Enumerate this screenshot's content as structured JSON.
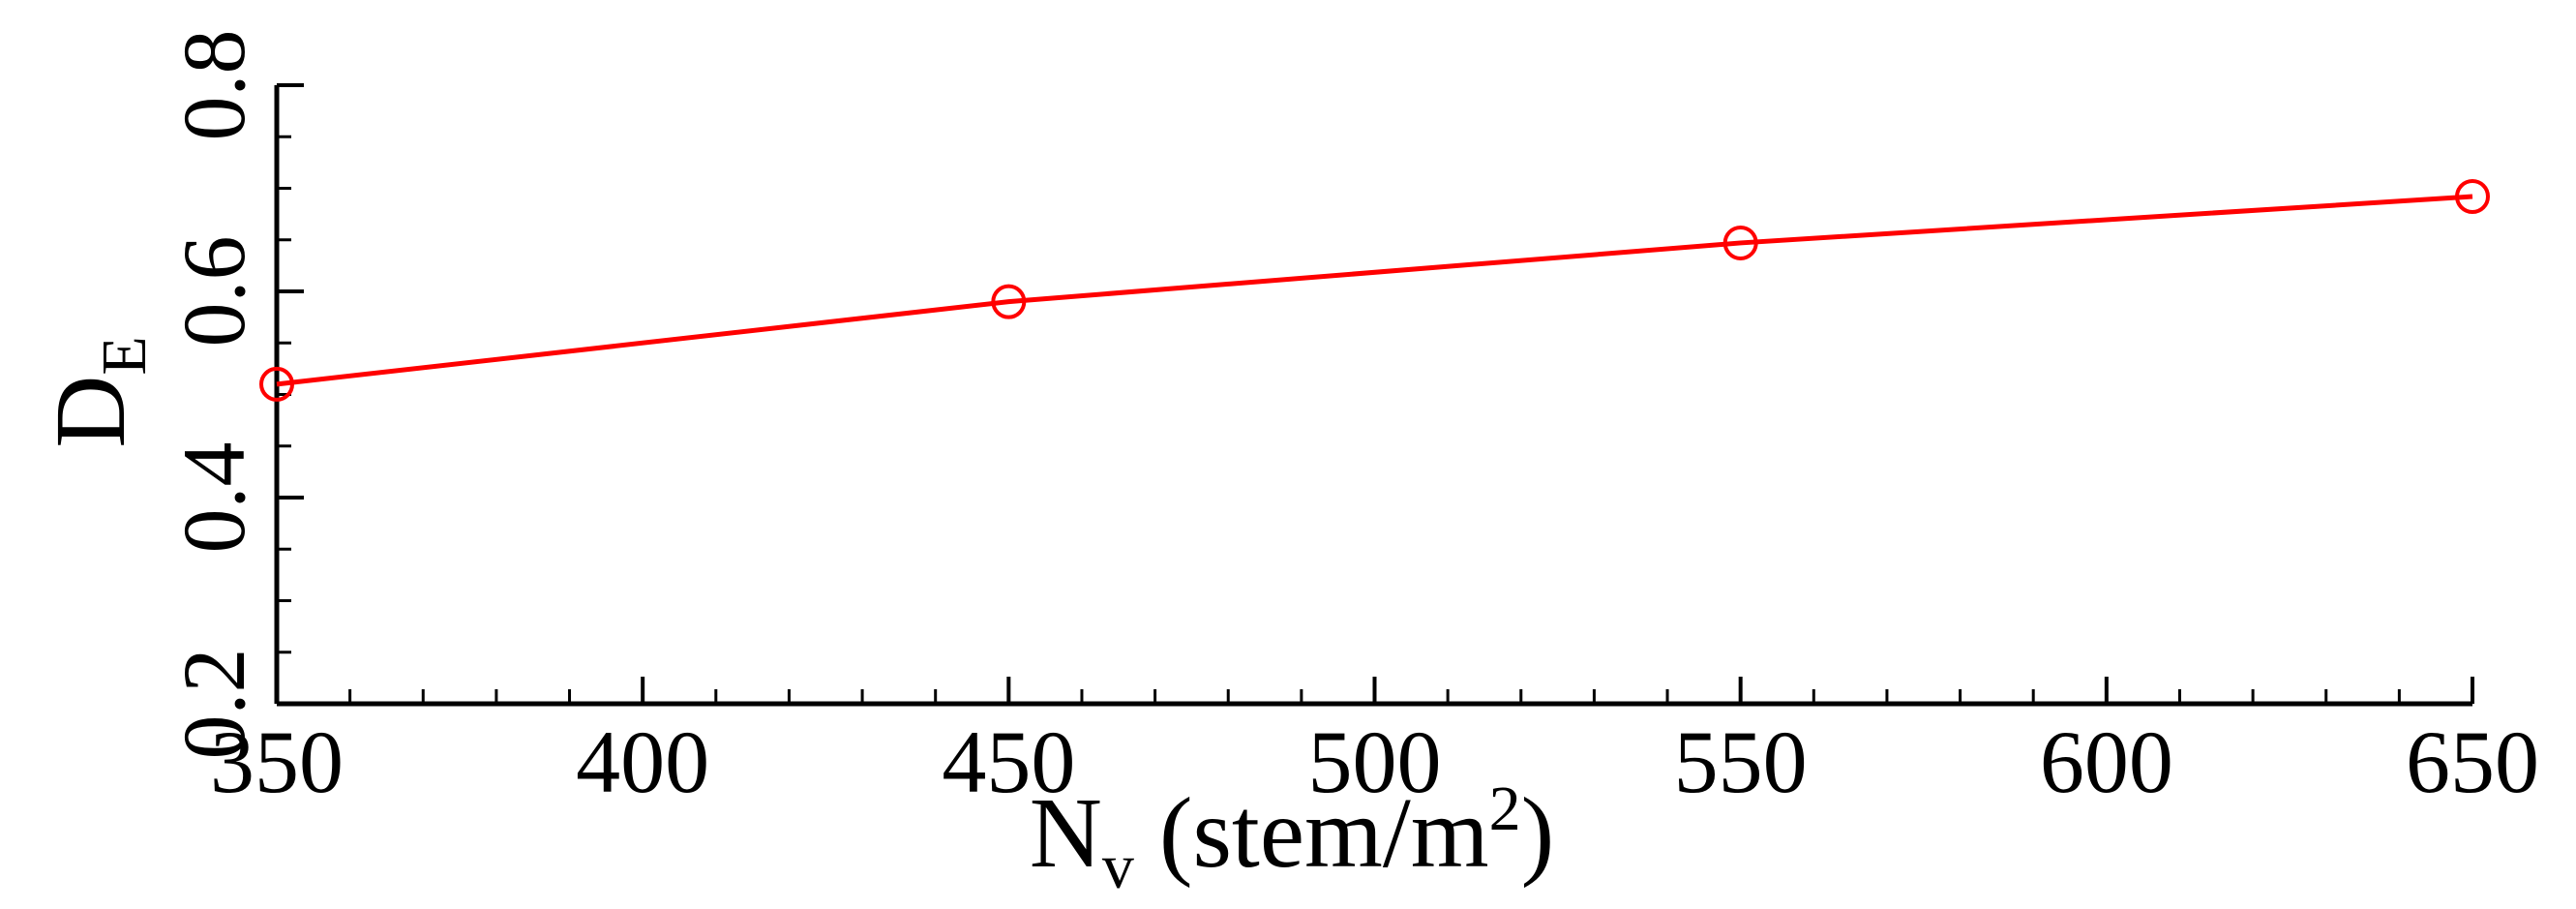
{
  "chart_data": {
    "type": "line",
    "title": "",
    "xlabel": {
      "main": "N",
      "sub": "v",
      "rest": " (stem/m",
      "sup": "2",
      "close": ")"
    },
    "ylabel": {
      "main": "D",
      "sub": "E"
    },
    "xlim": [
      350,
      650
    ],
    "ylim": [
      0.2,
      0.8
    ],
    "xticks": [
      "350",
      "400",
      "450",
      "500",
      "550",
      "600",
      "650"
    ],
    "yticks": [
      "0.2",
      "0.4",
      "0.6",
      "0.8"
    ],
    "grid": false,
    "series": [
      {
        "x": [
          350,
          450,
          550,
          650
        ],
        "y": [
          0.51,
          0.59,
          0.647,
          0.692
        ],
        "color": "#ff0000",
        "marker": "circle"
      }
    ]
  }
}
